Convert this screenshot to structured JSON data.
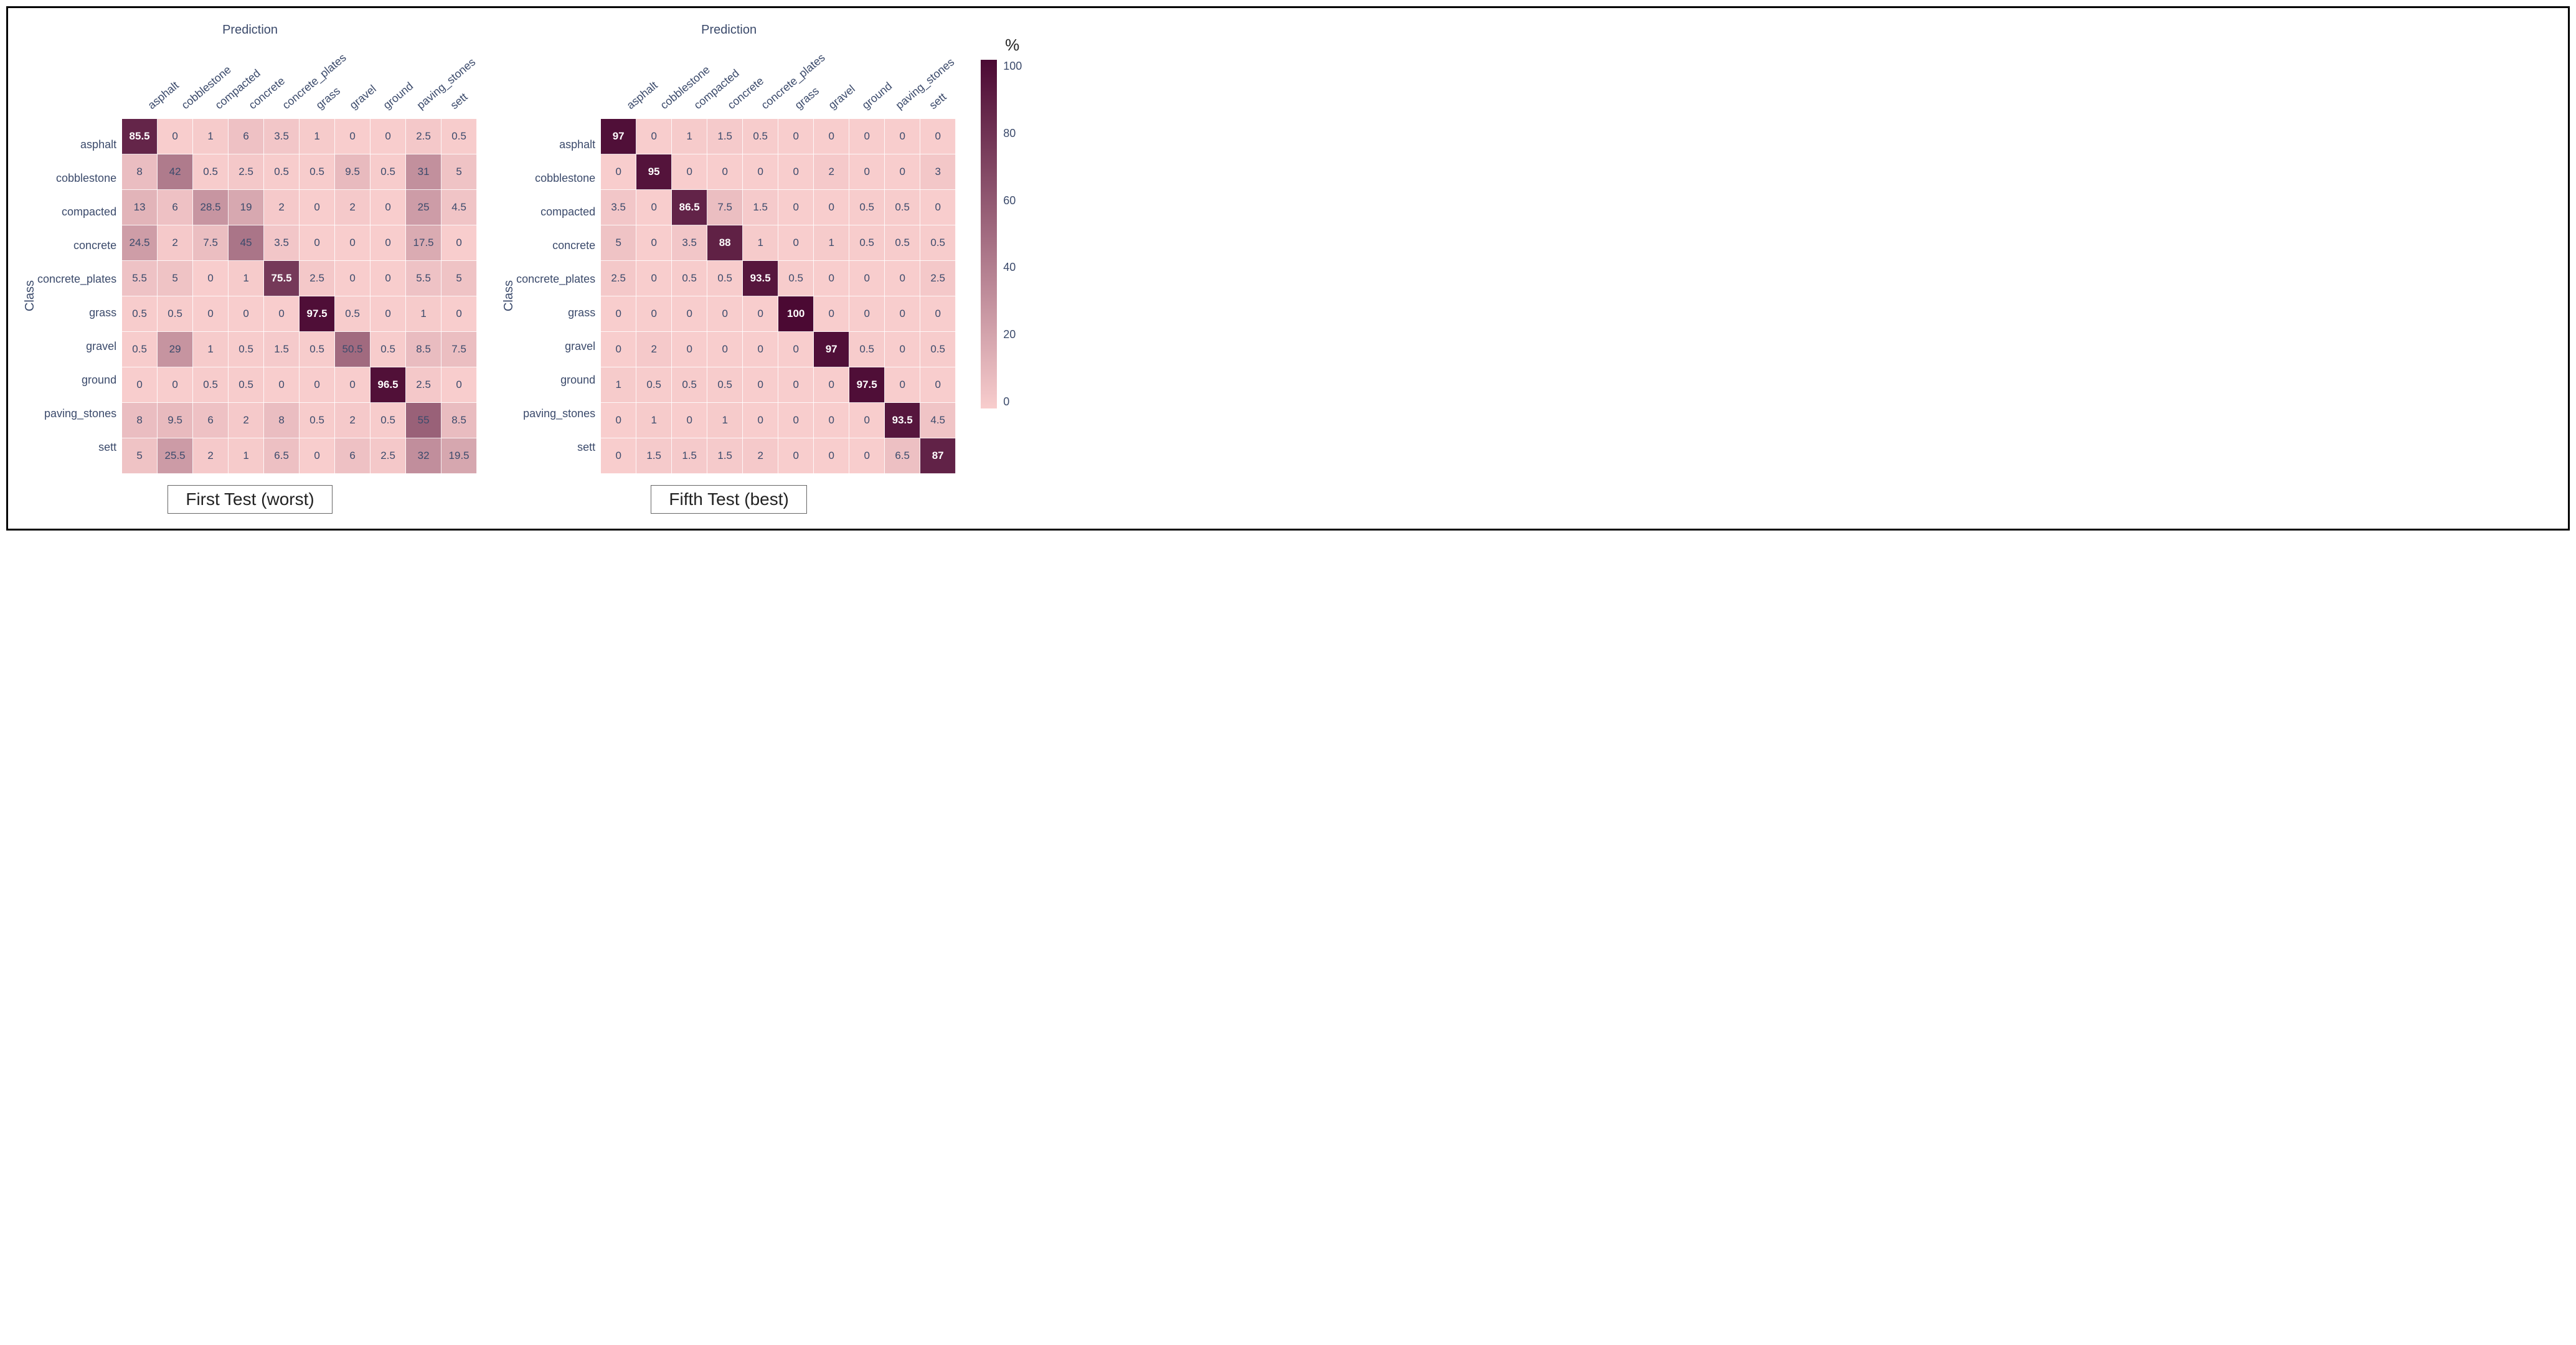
{
  "colormap": {
    "min_color": "#f8cdcd",
    "max_color": "#4b0933",
    "ticks": [
      100,
      80,
      60,
      40,
      20,
      0
    ],
    "title": "%"
  },
  "labels": [
    "asphalt",
    "cobblestone",
    "compacted",
    "concrete",
    "concrete_plates",
    "grass",
    "gravel",
    "ground",
    "paving_stones",
    "sett"
  ],
  "axis_titles": {
    "x": "Prediction",
    "y": "Class"
  },
  "cell_fontsize": 17,
  "label_fontsize": 18,
  "axis_title_fontsize": 20,
  "caption_fontsize": 28,
  "matrix1": {
    "caption": "First Test (worst)",
    "data": [
      [
        85.5,
        0,
        1,
        6,
        3.5,
        1,
        0,
        0,
        2.5,
        0.5
      ],
      [
        8,
        42,
        0.5,
        2.5,
        0.5,
        0.5,
        9.5,
        0.5,
        31,
        5
      ],
      [
        13,
        6,
        28.5,
        19,
        2,
        0,
        2,
        0,
        25,
        4.5
      ],
      [
        24.5,
        2,
        7.5,
        45,
        3.5,
        0,
        0,
        0,
        17.5,
        0
      ],
      [
        5.5,
        5,
        0,
        1,
        75.5,
        2.5,
        0,
        0,
        5.5,
        5
      ],
      [
        0.5,
        0.5,
        0,
        0,
        0,
        97.5,
        0.5,
        0,
        1,
        0
      ],
      [
        0.5,
        29,
        1,
        0.5,
        1.5,
        0.5,
        50.5,
        0.5,
        8.5,
        7.5
      ],
      [
        0,
        0,
        0.5,
        0.5,
        0,
        0,
        0,
        96.5,
        2.5,
        0
      ],
      [
        8,
        9.5,
        6,
        2,
        8,
        0.5,
        2,
        0.5,
        55,
        8.5
      ],
      [
        5,
        25.5,
        2,
        1,
        6.5,
        0,
        6,
        2.5,
        32,
        19.5
      ]
    ]
  },
  "matrix2": {
    "caption": "Fifth Test (best)",
    "data": [
      [
        97,
        0,
        1,
        1.5,
        0.5,
        0,
        0,
        0,
        0,
        0
      ],
      [
        0,
        95,
        0,
        0,
        0,
        0,
        2,
        0,
        0,
        3
      ],
      [
        3.5,
        0,
        86.5,
        7.5,
        1.5,
        0,
        0,
        0.5,
        0.5,
        0
      ],
      [
        5,
        0,
        3.5,
        88,
        1,
        0,
        1,
        0.5,
        0.5,
        0.5
      ],
      [
        2.5,
        0,
        0.5,
        0.5,
        93.5,
        0.5,
        0,
        0,
        0,
        2.5
      ],
      [
        0,
        0,
        0,
        0,
        0,
        100,
        0,
        0,
        0,
        0
      ],
      [
        0,
        2,
        0,
        0,
        0,
        0,
        97,
        0.5,
        0,
        0.5
      ],
      [
        1,
        0.5,
        0.5,
        0.5,
        0,
        0,
        0,
        97.5,
        0,
        0
      ],
      [
        0,
        1,
        0,
        1,
        0,
        0,
        0,
        0,
        93.5,
        4.5
      ],
      [
        0,
        1.5,
        1.5,
        1.5,
        2,
        0,
        0,
        0,
        6.5,
        87
      ]
    ]
  }
}
